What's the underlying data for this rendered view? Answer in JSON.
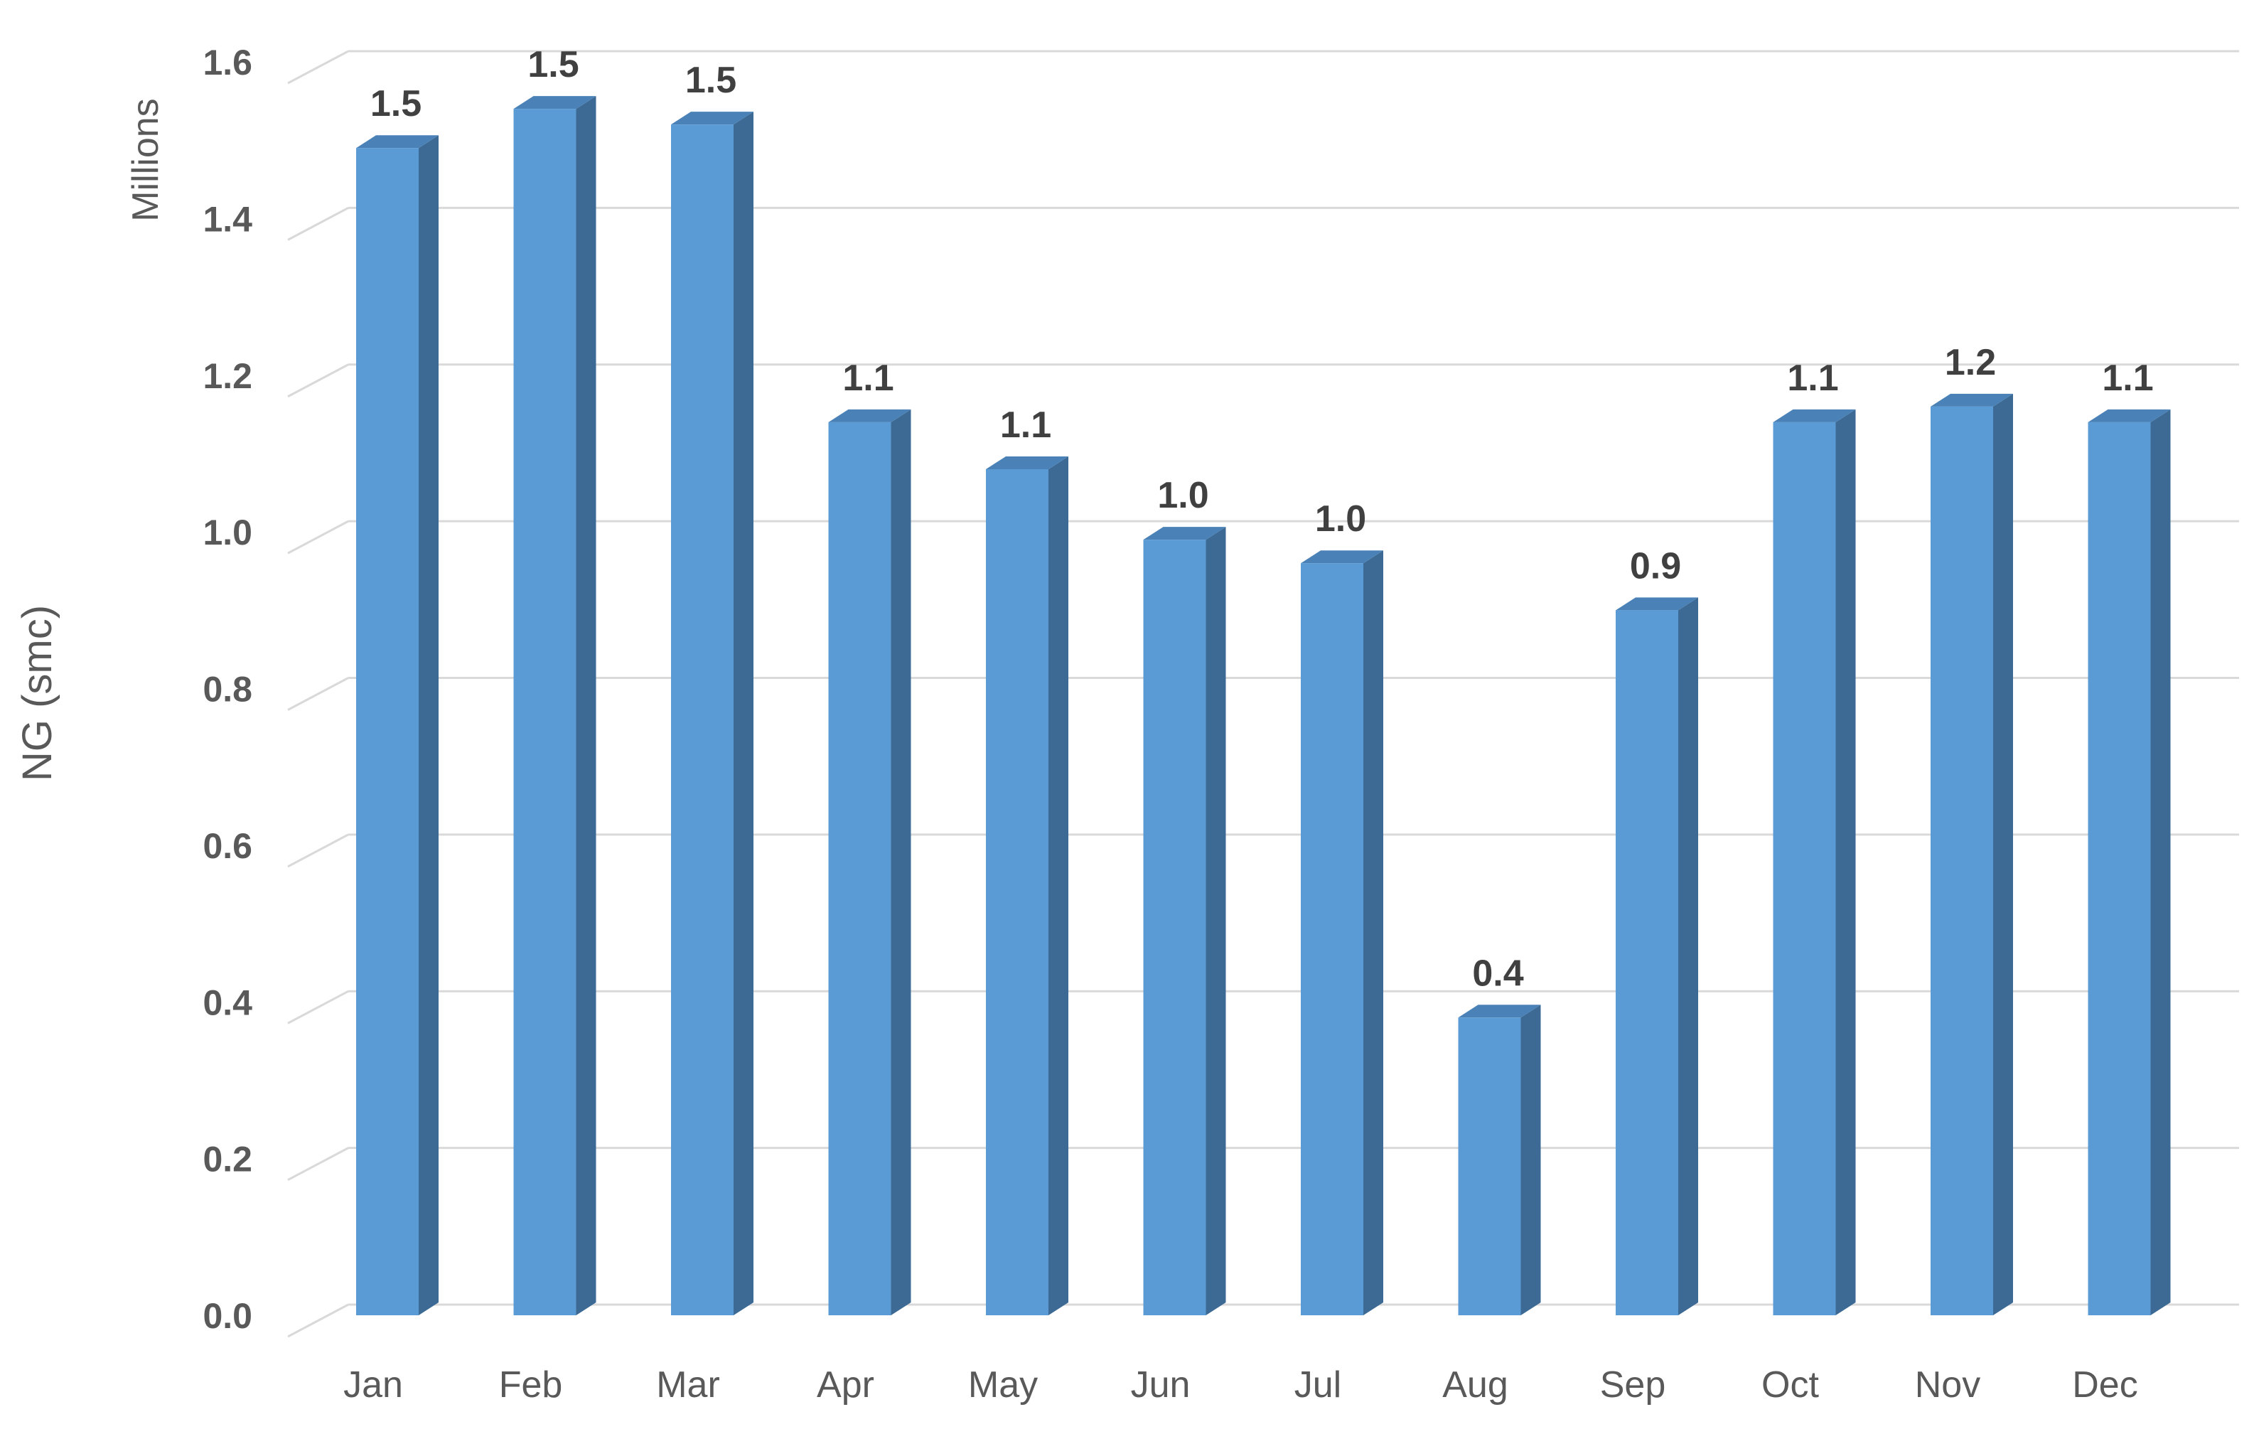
{
  "chart_data": {
    "type": "bar",
    "style": "3d-column",
    "categories": [
      "Jan",
      "Feb",
      "Mar",
      "Apr",
      "May",
      "Jun",
      "Jul",
      "Aug",
      "Sep",
      "Oct",
      "Nov",
      "Dec"
    ],
    "series": [
      {
        "values": [
          1.49,
          1.54,
          1.52,
          1.14,
          1.08,
          0.99,
          0.96,
          0.38,
          0.9,
          1.14,
          1.16,
          1.14
        ],
        "data_labels": [
          "1.5",
          "1.5",
          "1.5",
          "1.1",
          "1.1",
          "1.0",
          "1.0",
          "0.4",
          "0.9",
          "1.1",
          "1.2",
          "1.1"
        ]
      }
    ],
    "title": "",
    "xlabel": "",
    "ylabel": "NG (smc)",
    "units_label": "Millions",
    "ylim": [
      0,
      1.6
    ],
    "yticks": [
      0.0,
      0.2,
      0.4,
      0.6,
      0.8,
      1.0,
      1.2,
      1.4,
      1.6
    ],
    "ytick_labels": [
      "0.0",
      "0.2",
      "0.4",
      "0.6",
      "0.8",
      "1.0",
      "1.2",
      "1.4",
      "1.6"
    ],
    "grid": true,
    "legend": "none",
    "colors": {
      "bar_front": "#5b9bd5",
      "bar_side": "#3c6a94",
      "bar_top": "#4a82b8",
      "grid": "#d9d9d9",
      "text": "#595959",
      "data_label": "#404040"
    }
  }
}
